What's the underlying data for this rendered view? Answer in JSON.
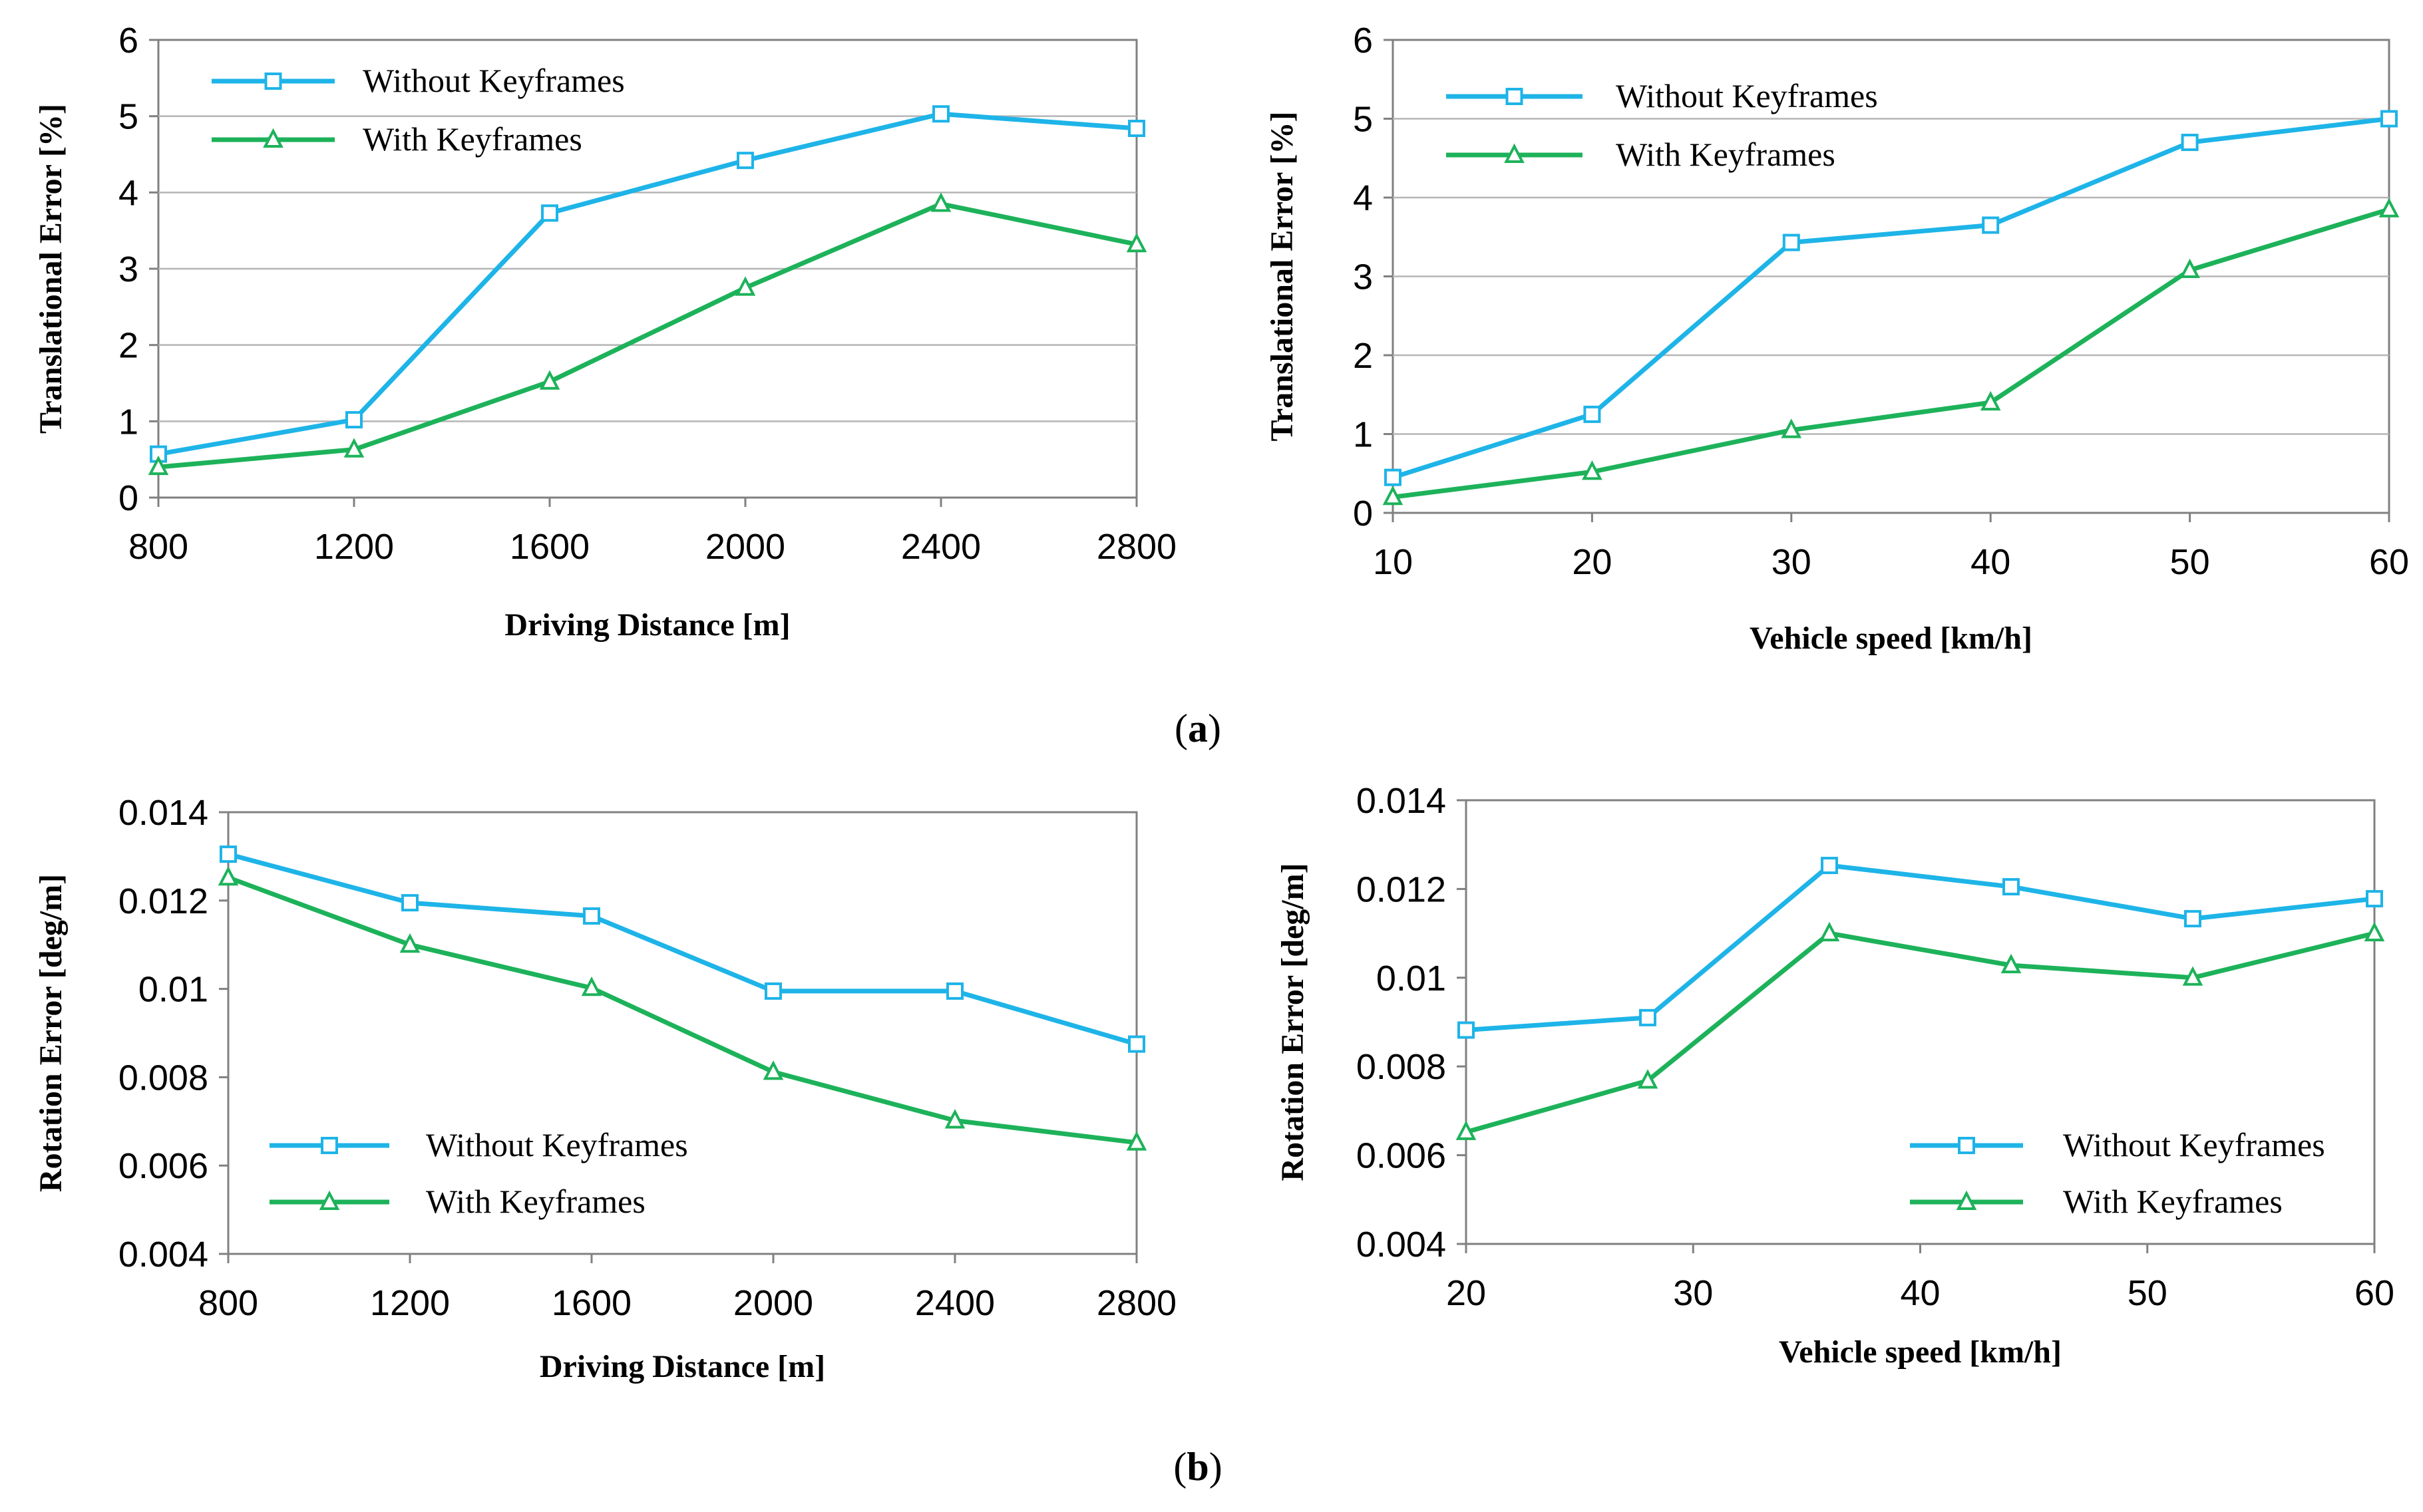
{
  "captions": {
    "a": {
      "open": "(",
      "letter": "a",
      "close": ")"
    },
    "b": {
      "open": "(",
      "letter": "b",
      "close": ")"
    }
  },
  "colors": {
    "without": "#1EB4E8",
    "with": "#1DB25A",
    "frame": "#808080"
  },
  "chart_data": [
    {
      "id": "a-left",
      "type": "line",
      "xlabel": "Driving Distance [m]",
      "ylabel": "Translational Error [%]",
      "x": [
        800,
        1200,
        1600,
        2000,
        2400,
        2800
      ],
      "xlim": [
        800,
        2800
      ],
      "xticks": [
        800,
        1200,
        1600,
        2000,
        2400,
        2800
      ],
      "ylim": [
        0,
        6
      ],
      "yticks": [
        0,
        1,
        2,
        3,
        4,
        5,
        6
      ],
      "ytick_labels": [
        "0",
        "1",
        "2",
        "3",
        "4",
        "5",
        "6"
      ],
      "grid": "horizontal",
      "legend": "top-left",
      "series": [
        {
          "name": "Without Keyframes",
          "marker": "square",
          "color_key": "without",
          "values": [
            0.57,
            1.02,
            3.73,
            4.42,
            5.03,
            4.84
          ]
        },
        {
          "name": "With Keyframes",
          "marker": "triangle",
          "color_key": "with",
          "values": [
            0.4,
            0.63,
            1.52,
            2.75,
            3.85,
            3.32
          ]
        }
      ]
    },
    {
      "id": "a-right",
      "type": "line",
      "xlabel": "Vehicle speed [km/h]",
      "ylabel": "Translational Error [%]",
      "x": [
        10,
        20,
        30,
        40,
        50,
        60
      ],
      "xlim": [
        10,
        60
      ],
      "xticks": [
        10,
        20,
        30,
        40,
        50,
        60
      ],
      "ylim": [
        0,
        6
      ],
      "yticks": [
        0,
        1,
        2,
        3,
        4,
        5,
        6
      ],
      "ytick_labels": [
        "0",
        "1",
        "2",
        "3",
        "4",
        "5",
        "6"
      ],
      "grid": "horizontal",
      "legend": "top-left",
      "series": [
        {
          "name": "Without Keyframes",
          "marker": "square",
          "color_key": "without",
          "values": [
            0.45,
            1.25,
            3.43,
            3.65,
            4.7,
            5.0
          ]
        },
        {
          "name": "With Keyframes",
          "marker": "triangle",
          "color_key": "with",
          "values": [
            0.2,
            0.52,
            1.05,
            1.4,
            3.08,
            3.85
          ]
        }
      ]
    },
    {
      "id": "b-left",
      "type": "line",
      "xlabel": "Driving Distance [m]",
      "ylabel": "Rotation Error [deg/m]",
      "x": [
        800,
        1200,
        1600,
        2000,
        2400,
        2800
      ],
      "xlim": [
        800,
        2800
      ],
      "xticks": [
        800,
        1200,
        1600,
        2000,
        2400,
        2800
      ],
      "ylim": [
        0.004,
        0.014
      ],
      "yticks": [
        0.004,
        0.006,
        0.008,
        0.01,
        0.012,
        0.014
      ],
      "ytick_labels": [
        "0.004",
        "0.006",
        "0.008",
        "0.01",
        "0.012",
        "0.014"
      ],
      "grid": "none",
      "legend": "bottom-left",
      "series": [
        {
          "name": "Without Keyframes",
          "marker": "square",
          "color_key": "without",
          "values": [
            0.01305,
            0.01195,
            0.01165,
            0.00995,
            0.00995,
            0.00875
          ]
        },
        {
          "name": "With Keyframes",
          "marker": "triangle",
          "color_key": "with",
          "values": [
            0.01252,
            0.011,
            0.01002,
            0.00812,
            0.00702,
            0.00652
          ]
        }
      ]
    },
    {
      "id": "b-right",
      "type": "line",
      "xlabel": "Vehicle speed [km/h]",
      "ylabel": "Rotation Error [deg/m]",
      "x": [
        20,
        28,
        36,
        44,
        52,
        60
      ],
      "xlim": [
        20,
        60
      ],
      "xticks": [
        20,
        30,
        40,
        50,
        60
      ],
      "ylim": [
        0.004,
        0.014
      ],
      "yticks": [
        0.004,
        0.006,
        0.008,
        0.01,
        0.012,
        0.014
      ],
      "ytick_labels": [
        "0.004",
        "0.006",
        "0.008",
        "0.01",
        "0.012",
        "0.014"
      ],
      "grid": "none",
      "legend": "bottom-right",
      "series": [
        {
          "name": "Without Keyframes",
          "marker": "square",
          "color_key": "without",
          "values": [
            0.00882,
            0.0091,
            0.01253,
            0.01205,
            0.01133,
            0.01178
          ]
        },
        {
          "name": "With Keyframes",
          "marker": "triangle",
          "color_key": "with",
          "values": [
            0.00652,
            0.00768,
            0.011,
            0.01028,
            0.01,
            0.011
          ]
        }
      ]
    }
  ]
}
